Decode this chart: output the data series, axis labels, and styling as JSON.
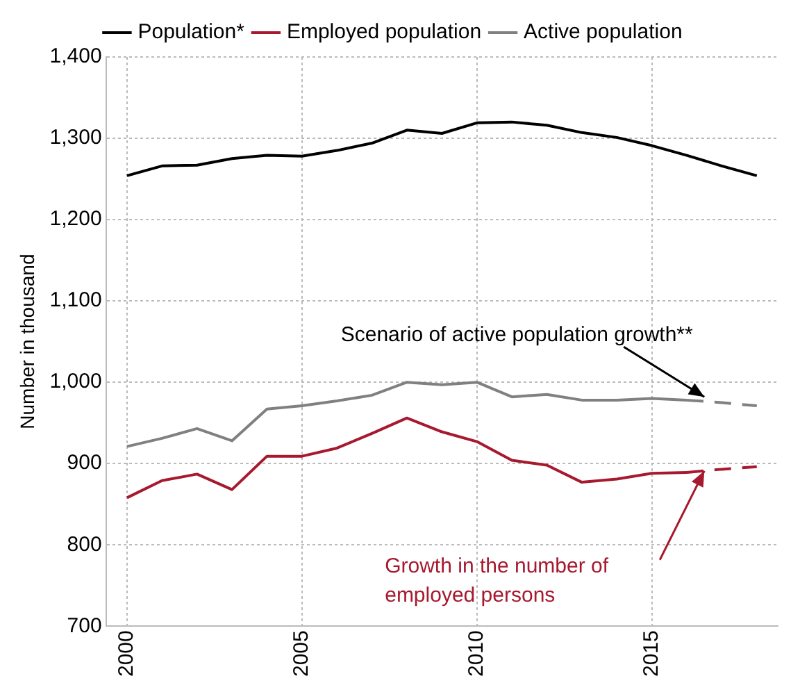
{
  "chart_data": {
    "type": "line",
    "ylabel": "Number in thousand",
    "x": [
      2000,
      2001,
      2002,
      2003,
      2004,
      2005,
      2006,
      2007,
      2008,
      2009,
      2010,
      2011,
      2012,
      2013,
      2014,
      2015,
      2016,
      2017,
      2018
    ],
    "series": [
      {
        "name": "Population*",
        "color": "#000000",
        "values": [
          1254,
          1266,
          1267,
          1275,
          1279,
          1278,
          1285,
          1294,
          1310,
          1306,
          1319,
          1320,
          1316,
          1307,
          1301,
          1291,
          1279,
          1266,
          1254
        ]
      },
      {
        "name": "Employed population",
        "color": "#a6192e",
        "values": [
          858,
          879,
          887,
          868,
          909,
          909,
          919,
          937,
          956,
          939,
          927,
          904,
          898,
          877,
          881,
          888,
          889,
          null,
          null
        ]
      },
      {
        "name": "Active population",
        "color": "#808080",
        "values": [
          921,
          931,
          943,
          928,
          967,
          971,
          977,
          984,
          1000,
          997,
          1000,
          982,
          985,
          978,
          978,
          980,
          978,
          null,
          null
        ]
      },
      {
        "color": "#808080",
        "line_style": "dashed",
        "x": [
          2016,
          2017,
          2018
        ],
        "values": [
          978,
          975,
          971
        ]
      },
      {
        "color": "#a6192e",
        "line_style": "dashed",
        "x": [
          2016,
          2017,
          2018
        ],
        "values": [
          889,
          893,
          896
        ]
      }
    ],
    "xlim": [
      1999.4,
      2018.6
    ],
    "xticks": [
      2000,
      2005,
      2010,
      2015
    ],
    "ylim": [
      700,
      1400
    ],
    "yticks": [
      700,
      800,
      900,
      {
        "value": 1000,
        "label": "1,000"
      },
      {
        "value": 1100,
        "label": "1,100"
      },
      {
        "value": 1200,
        "label": "1,200"
      },
      {
        "value": 1300,
        "label": "1,300"
      },
      {
        "value": 1400,
        "label": "1,400"
      }
    ],
    "grid": true,
    "legend": "top",
    "marker": "none",
    "line_style": "solid",
    "annotations": [
      {
        "text": "Scenario of active population growth**",
        "x": 2016.5,
        "y": 982
      },
      "Growth in the number of employed persons"
    ]
  }
}
